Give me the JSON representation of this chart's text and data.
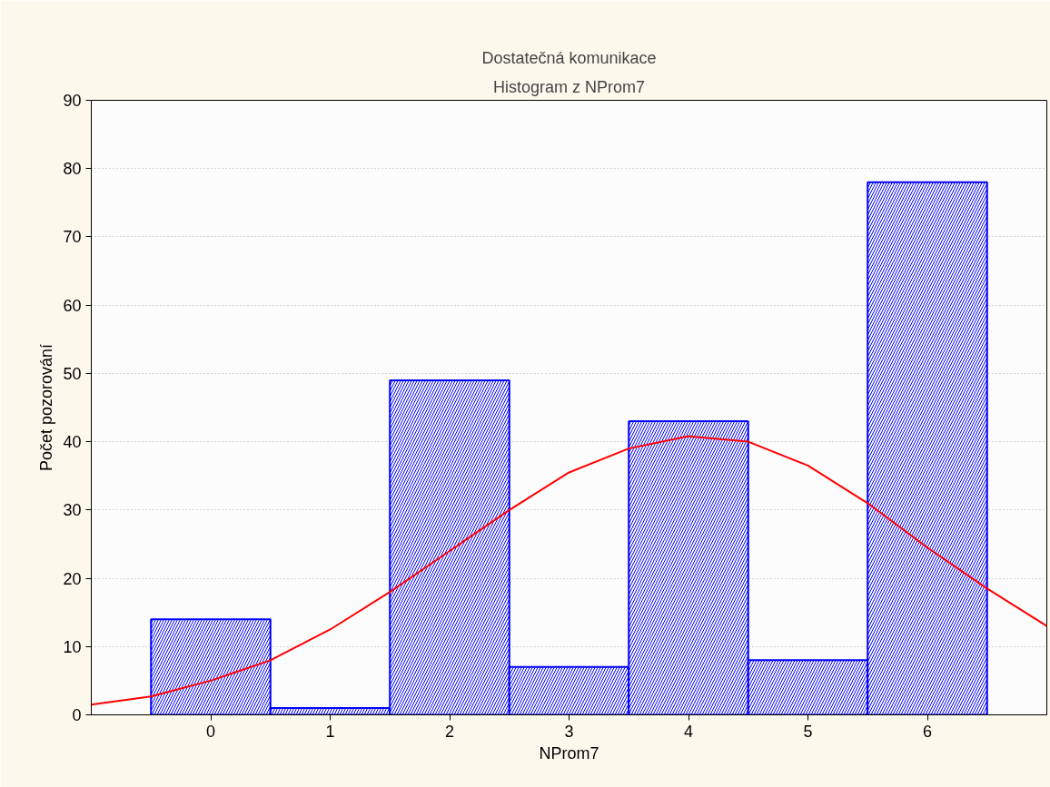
{
  "chart_data": {
    "type": "histogram",
    "title": "Dostatečná komunikace",
    "subtitle": "Histogram z NProm7",
    "xlabel": "NProm7",
    "ylabel": "Počet pozorování",
    "bins": [
      -0.5,
      0.5,
      1.5,
      2.5,
      3.5,
      4.5,
      5.5,
      6.5
    ],
    "values": [
      14,
      1,
      49,
      7,
      43,
      8,
      78
    ],
    "color": "#0000ff",
    "series": [
      {
        "type": "line",
        "color": "#ff0000",
        "x": [
          -1,
          -0.5,
          0,
          0.5,
          1,
          1.5,
          2,
          2.5,
          3,
          3.5,
          4,
          4.5,
          5,
          5.5,
          6,
          6.5,
          7
        ],
        "values": [
          1.5,
          2.7,
          5,
          8,
          12.5,
          18,
          24,
          30,
          35.5,
          39,
          40.8,
          40,
          36.5,
          31,
          24.5,
          18.5,
          13
        ]
      }
    ],
    "xlim": [
      -1,
      7
    ],
    "xticks": [
      0,
      1,
      2,
      3,
      4,
      5,
      6
    ],
    "ylim": [
      0,
      90
    ],
    "yticks": [
      0,
      10,
      20,
      30,
      40,
      50,
      60,
      70,
      80,
      90
    ],
    "grid": "y",
    "line_style": "solid",
    "marker": "none"
  }
}
